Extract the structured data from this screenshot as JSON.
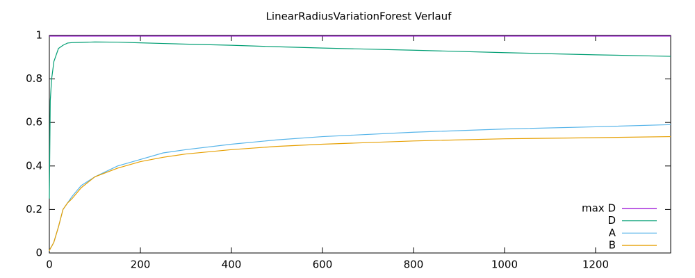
{
  "chart_data": {
    "type": "line",
    "title": "LinearRadiusVariationForest Verlauf",
    "x": [
      0,
      2,
      5,
      10,
      20,
      30,
      40,
      50,
      70,
      100,
      150,
      200,
      250,
      300,
      400,
      500,
      600,
      800,
      1000,
      1200,
      1365
    ],
    "series": [
      {
        "name": "max D",
        "color": "#9400d3",
        "values": [
          0.997,
          0.997,
          0.997,
          0.997,
          0.997,
          0.997,
          0.997,
          0.997,
          0.997,
          0.997,
          0.997,
          0.997,
          0.997,
          0.997,
          0.997,
          0.997,
          0.997,
          0.997,
          0.997,
          0.997,
          0.997
        ]
      },
      {
        "name": "D",
        "color": "#009e73",
        "values": [
          0.25,
          0.7,
          0.8,
          0.88,
          0.94,
          0.955,
          0.965,
          0.967,
          0.968,
          0.97,
          0.969,
          0.966,
          0.963,
          0.96,
          0.955,
          0.948,
          0.942,
          0.932,
          0.921,
          0.911,
          0.904
        ]
      },
      {
        "name": "A",
        "color": "#56b4e9",
        "values": [
          0.01,
          0.02,
          0.03,
          0.05,
          0.12,
          0.2,
          0.23,
          0.26,
          0.31,
          0.35,
          0.4,
          0.43,
          0.46,
          0.475,
          0.5,
          0.52,
          0.535,
          0.555,
          0.57,
          0.58,
          0.59
        ]
      },
      {
        "name": "B",
        "color": "#e69f00",
        "values": [
          0.01,
          0.02,
          0.03,
          0.05,
          0.12,
          0.2,
          0.23,
          0.25,
          0.3,
          0.35,
          0.39,
          0.42,
          0.44,
          0.455,
          0.475,
          0.49,
          0.5,
          0.515,
          0.525,
          0.53,
          0.535
        ]
      }
    ],
    "xlim": [
      0,
      1365
    ],
    "ylim": [
      0,
      1
    ],
    "xticks": [
      0,
      200,
      400,
      600,
      800,
      1000,
      1200
    ],
    "yticks": [
      0,
      0.2,
      0.4,
      0.6,
      0.8,
      1
    ],
    "legend": "lower right"
  }
}
